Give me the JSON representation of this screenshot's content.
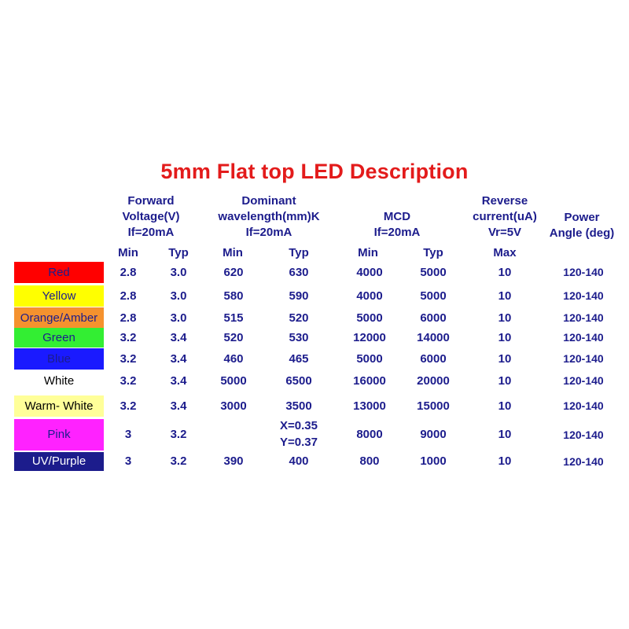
{
  "title": "5mm Flat top LED Description",
  "header": {
    "forward_voltage": [
      "Forward",
      "Voltage(V)",
      "If=20mA"
    ],
    "dominant_wavelength": [
      "Dominant",
      "wavelength(mm)K",
      "If=20mA"
    ],
    "mcd": [
      "MCD",
      "If=20mA"
    ],
    "reverse_current": [
      "Reverse",
      "current(uA)",
      "Vr=5V"
    ],
    "power_angle": [
      "Power",
      "Angle (deg)"
    ],
    "sub": {
      "vf_min": "Min",
      "vf_typ": "Typ",
      "wl_min": "Min",
      "wl_typ": "Typ",
      "mcd_min": "Min",
      "mcd_typ": "Typ",
      "ir_max": "Max"
    }
  },
  "rows": [
    {
      "name": "Red",
      "bg": "#ff0000",
      "fg": "#1c1c8c",
      "vf_min": "2.8",
      "vf_typ": "3.0",
      "wl_min": "620",
      "wl_typ": "630",
      "mcd_min": "4000",
      "mcd_typ": "5000",
      "ir_max": "10",
      "angle": "120-140"
    },
    {
      "name": "Yellow",
      "bg": "#ffff00",
      "fg": "#1c1c8c",
      "vf_min": "2.8",
      "vf_typ": "3.0",
      "wl_min": "580",
      "wl_typ": "590",
      "mcd_min": "4000",
      "mcd_typ": "5000",
      "ir_max": "10",
      "angle": "120-140"
    },
    {
      "name": "Orange/Amber",
      "bg": "#f5922e",
      "fg": "#1c1c8c",
      "vf_min": "2.8",
      "vf_typ": "3.0",
      "wl_min": "515",
      "wl_typ": "520",
      "mcd_min": "5000",
      "mcd_typ": "6000",
      "ir_max": "10",
      "angle": "120-140"
    },
    {
      "name": "Green",
      "bg": "#33ee33",
      "fg": "#1c1c8c",
      "vf_min": "3.2",
      "vf_typ": "3.4",
      "wl_min": "520",
      "wl_typ": "530",
      "mcd_min": "12000",
      "mcd_typ": "14000",
      "ir_max": "10",
      "angle": "120-140"
    },
    {
      "name": "Blue",
      "bg": "#1a1aff",
      "fg": "#1c1c8c",
      "vf_min": "3.2",
      "vf_typ": "3.4",
      "wl_min": "460",
      "wl_typ": "465",
      "mcd_min": "5000",
      "mcd_typ": "6000",
      "ir_max": "10",
      "angle": "120-140"
    },
    {
      "name": "White",
      "bg": "#ffffff",
      "fg": "#000000",
      "vf_min": "3.2",
      "vf_typ": "3.4",
      "wl_min": "5000",
      "wl_typ": "6500",
      "mcd_min": "16000",
      "mcd_typ": "20000",
      "ir_max": "10",
      "angle": "120-140"
    },
    {
      "name": "Warm- White",
      "bg": "#ffff99",
      "fg": "#000000",
      "vf_min": "3.2",
      "vf_typ": "3.4",
      "wl_min": "3000",
      "wl_typ": "3500",
      "mcd_min": "13000",
      "mcd_typ": "15000",
      "ir_max": "10",
      "angle": "120-140"
    },
    {
      "name": "Pink",
      "bg": "#ff22ff",
      "fg": "#1c1c8c",
      "vf_min": "3",
      "vf_typ": "3.2",
      "wl_min": "",
      "wl_typ": [
        "X=0.35",
        "Y=0.37"
      ],
      "mcd_min": "8000",
      "mcd_typ": "9000",
      "ir_max": "10",
      "angle": "120-140"
    },
    {
      "name": "UV/Purple",
      "bg": "#1c1c8c",
      "fg": "#ffffff",
      "vf_min": "3",
      "vf_typ": "3.2",
      "wl_min": "390",
      "wl_typ": "400",
      "mcd_min": "800",
      "mcd_typ": "1000",
      "ir_max": "10",
      "angle": "120-140"
    }
  ]
}
